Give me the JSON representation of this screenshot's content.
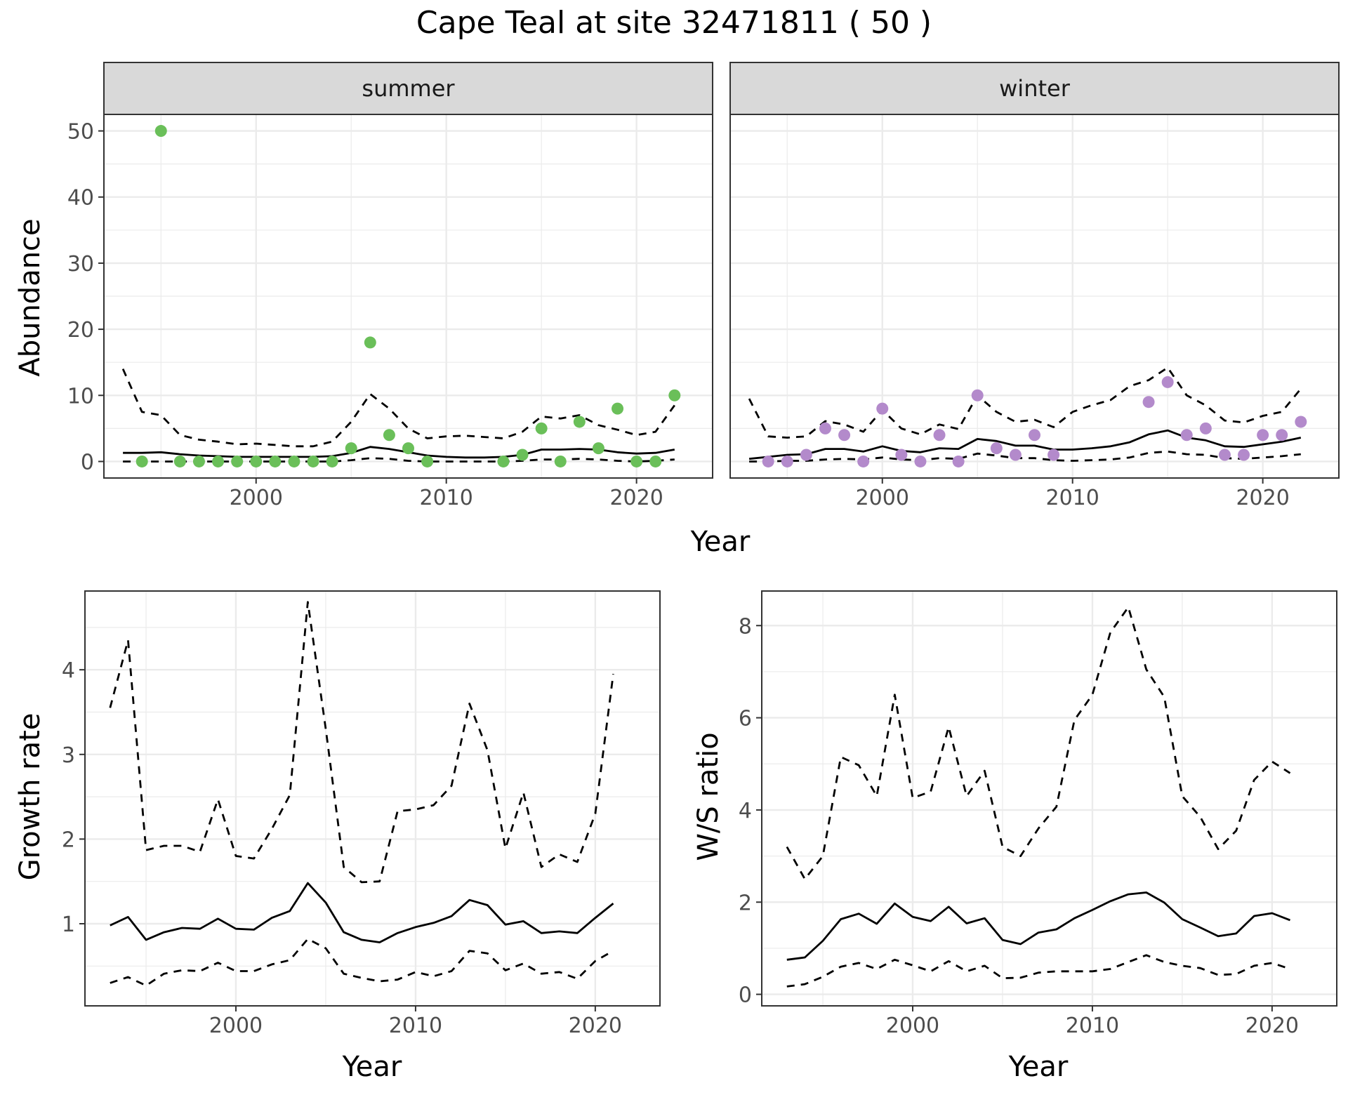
{
  "title": "Cape Teal at site 32471811 ( 50 )",
  "colors": {
    "summer_points": "#6ABF59",
    "winter_points": "#B38ACB",
    "strip_bg": "#D9D9D9"
  },
  "chart_data": [
    {
      "type": "scatter",
      "panel": "summer",
      "facet_label": "summer",
      "ylabel": "Abundance",
      "xlabel": "Year",
      "xlim": [
        1992,
        2024
      ],
      "ylim": [
        -2.5,
        52.5
      ],
      "xticks": [
        2000,
        2010,
        2020
      ],
      "yticks": [
        0,
        10,
        20,
        30,
        40,
        50
      ],
      "points": {
        "x": [
          1994,
          1995,
          1996,
          1997,
          1998,
          1999,
          2000,
          2001,
          2002,
          2003,
          2004,
          2005,
          2006,
          2007,
          2008,
          2009,
          2013,
          2014,
          2015,
          2016,
          2017,
          2018,
          2019,
          2020,
          2021,
          2022
        ],
        "y": [
          0,
          50,
          0,
          0,
          0,
          0,
          0,
          0,
          0,
          0,
          0,
          2,
          18,
          4,
          2,
          0,
          0,
          1,
          5,
          0,
          6,
          2,
          8,
          0,
          0,
          10
        ]
      },
      "series": [
        {
          "name": "",
          "style": "solid",
          "x": [
            1993,
            1994,
            1995,
            1996,
            1997,
            1998,
            1999,
            2000,
            2001,
            2002,
            2003,
            2004,
            2005,
            2006,
            2007,
            2008,
            2009,
            2010,
            2011,
            2012,
            2013,
            2014,
            2015,
            2016,
            2017,
            2018,
            2019,
            2020,
            2021,
            2022
          ],
          "y": [
            1.3,
            1.3,
            1.4,
            1.1,
            0.9,
            0.8,
            0.7,
            0.7,
            0.7,
            0.7,
            0.7,
            0.8,
            1.3,
            2.2,
            1.9,
            1.4,
            0.9,
            0.7,
            0.6,
            0.6,
            0.7,
            1.0,
            1.8,
            1.8,
            1.9,
            1.8,
            1.4,
            1.2,
            1.3,
            1.8
          ]
        },
        {
          "name": "",
          "style": "dashed",
          "x": [
            1993,
            1994,
            1995,
            1996,
            1997,
            1998,
            1999,
            2000,
            2001,
            2002,
            2003,
            2004,
            2005,
            2006,
            2007,
            2008,
            2009,
            2010,
            2011,
            2012,
            2013,
            2014,
            2015,
            2016,
            2017,
            2018,
            2019,
            2020,
            2021,
            2022
          ],
          "y": [
            14,
            7.5,
            7,
            4,
            3.3,
            3,
            2.6,
            2.7,
            2.5,
            2.3,
            2.3,
            3,
            6,
            10.2,
            8,
            5,
            3.5,
            3.8,
            3.9,
            3.7,
            3.5,
            4.5,
            6.8,
            6.5,
            7,
            5.5,
            4.8,
            4,
            4.5,
            8.5
          ]
        },
        {
          "name": "",
          "style": "dashed",
          "x": [
            1993,
            1994,
            1995,
            1996,
            1997,
            1998,
            1999,
            2000,
            2001,
            2002,
            2003,
            2004,
            2005,
            2006,
            2007,
            2008,
            2009,
            2010,
            2011,
            2012,
            2013,
            2014,
            2015,
            2016,
            2017,
            2018,
            2019,
            2020,
            2021,
            2022
          ],
          "y": [
            0,
            0,
            0,
            0,
            0,
            0,
            0,
            0,
            0,
            0,
            0,
            0,
            0.2,
            0.5,
            0.4,
            0.1,
            0,
            0,
            0,
            0,
            0,
            0.1,
            0.3,
            0.3,
            0.4,
            0.3,
            0.1,
            0,
            0.1,
            0.3
          ]
        }
      ]
    },
    {
      "type": "scatter",
      "panel": "winter",
      "facet_label": "winter",
      "xlabel": "Year",
      "xlim": [
        1992,
        2024
      ],
      "ylim": [
        -2.5,
        52.5
      ],
      "xticks": [
        2000,
        2010,
        2020
      ],
      "points": {
        "x": [
          1994,
          1995,
          1996,
          1997,
          1998,
          1999,
          2000,
          2001,
          2002,
          2003,
          2004,
          2005,
          2006,
          2007,
          2008,
          2009,
          2014,
          2015,
          2016,
          2017,
          2018,
          2019,
          2020,
          2021,
          2022
        ],
        "y": [
          0,
          0,
          1,
          5,
          4,
          0,
          8,
          1,
          0,
          4,
          0,
          10,
          2,
          1,
          4,
          1,
          9,
          12,
          4,
          5,
          1,
          1,
          4,
          4,
          6
        ]
      },
      "series": [
        {
          "name": "",
          "style": "solid",
          "x": [
            1993,
            1994,
            1995,
            1996,
            1997,
            1998,
            1999,
            2000,
            2001,
            2002,
            2003,
            2004,
            2005,
            2006,
            2007,
            2008,
            2009,
            2010,
            2011,
            2012,
            2013,
            2014,
            2015,
            2016,
            2017,
            2018,
            2019,
            2020,
            2021,
            2022
          ],
          "y": [
            0.4,
            0.7,
            1.0,
            1.1,
            1.9,
            1.9,
            1.5,
            2.3,
            1.6,
            1.4,
            2.0,
            1.9,
            3.4,
            3.1,
            2.4,
            2.4,
            1.8,
            1.8,
            2.0,
            2.3,
            2.9,
            4.1,
            4.7,
            3.6,
            3.2,
            2.3,
            2.2,
            2.6,
            3.0,
            3.6
          ]
        },
        {
          "name": "",
          "style": "dashed",
          "x": [
            1993,
            1994,
            1995,
            1996,
            1997,
            1998,
            1999,
            2000,
            2001,
            2002,
            2003,
            2004,
            2005,
            2006,
            2007,
            2008,
            2009,
            2010,
            2011,
            2012,
            2013,
            2014,
            2015,
            2016,
            2017,
            2018,
            2019,
            2020,
            2021,
            2022
          ],
          "y": [
            9.5,
            3.8,
            3.6,
            3.8,
            6.1,
            5.6,
            4.5,
            7.8,
            5,
            4.1,
            5.6,
            4.9,
            10,
            7.5,
            6,
            6.3,
            5.2,
            7.5,
            8.5,
            9.3,
            11.4,
            12.3,
            14.2,
            10,
            8.5,
            6.2,
            5.9,
            6.9,
            7.5,
            11
          ]
        },
        {
          "name": "",
          "style": "dashed",
          "x": [
            1993,
            1994,
            1995,
            1996,
            1997,
            1998,
            1999,
            2000,
            2001,
            2002,
            2003,
            2004,
            2005,
            2006,
            2007,
            2008,
            2009,
            2010,
            2011,
            2012,
            2013,
            2014,
            2015,
            2016,
            2017,
            2018,
            2019,
            2020,
            2021,
            2022
          ],
          "y": [
            0,
            0,
            0.1,
            0.1,
            0.3,
            0.4,
            0.3,
            0.6,
            0.3,
            0.2,
            0.5,
            0.4,
            1.2,
            0.9,
            0.5,
            0.5,
            0.2,
            0.1,
            0.2,
            0.3,
            0.6,
            1.3,
            1.5,
            1.1,
            1.0,
            0.5,
            0.4,
            0.6,
            0.8,
            1.1
          ]
        }
      ]
    },
    {
      "type": "line",
      "panel": "growth",
      "ylabel": "Growth rate",
      "xlabel": "Year",
      "xlim": [
        1991.6,
        2023.6
      ],
      "ylim": [
        0.03,
        4.93
      ],
      "xticks": [
        2000,
        2010,
        2020
      ],
      "yticks": [
        1,
        2,
        3,
        4
      ],
      "series": [
        {
          "name": "",
          "style": "solid",
          "x": [
            1993,
            1994,
            1995,
            1996,
            1997,
            1998,
            1999,
            2000,
            2001,
            2002,
            2003,
            2004,
            2005,
            2006,
            2007,
            2008,
            2009,
            2010,
            2011,
            2012,
            2013,
            2014,
            2015,
            2016,
            2017,
            2018,
            2019,
            2020,
            2021
          ],
          "y": [
            0.98,
            1.08,
            0.81,
            0.9,
            0.95,
            0.94,
            1.06,
            0.94,
            0.93,
            1.07,
            1.15,
            1.48,
            1.25,
            0.9,
            0.81,
            0.78,
            0.89,
            0.96,
            1.01,
            1.09,
            1.28,
            1.22,
            0.99,
            1.03,
            0.89,
            0.91,
            0.89,
            1.07,
            1.24
          ]
        },
        {
          "name": "",
          "style": "dashed",
          "x": [
            1993,
            1994,
            1995,
            1996,
            1997,
            1998,
            1999,
            2000,
            2001,
            2002,
            2003,
            2004,
            2005,
            2006,
            2007,
            2008,
            2009,
            2010,
            2011,
            2012,
            2013,
            2014,
            2015,
            2016,
            2017,
            2018,
            2019,
            2020,
            2021
          ],
          "y": [
            3.55,
            4.35,
            1.87,
            1.92,
            1.92,
            1.85,
            2.47,
            1.8,
            1.77,
            2.12,
            2.52,
            4.8,
            3.3,
            1.67,
            1.49,
            1.5,
            2.33,
            2.35,
            2.4,
            2.63,
            3.6,
            3.05,
            1.89,
            2.55,
            1.67,
            1.82,
            1.73,
            2.3,
            3.95
          ]
        },
        {
          "name": "",
          "style": "dashed",
          "x": [
            1993,
            1994,
            1995,
            1996,
            1997,
            1998,
            1999,
            2000,
            2001,
            2002,
            2003,
            2004,
            2005,
            2006,
            2007,
            2008,
            2009,
            2010,
            2011,
            2012,
            2013,
            2014,
            2015,
            2016,
            2017,
            2018,
            2019,
            2020,
            2021
          ],
          "y": [
            0.3,
            0.37,
            0.27,
            0.41,
            0.45,
            0.44,
            0.54,
            0.44,
            0.44,
            0.52,
            0.57,
            0.82,
            0.71,
            0.41,
            0.36,
            0.32,
            0.34,
            0.43,
            0.38,
            0.44,
            0.68,
            0.65,
            0.45,
            0.53,
            0.41,
            0.43,
            0.35,
            0.56,
            0.68
          ]
        }
      ]
    },
    {
      "type": "line",
      "panel": "ratio",
      "ylabel": "W/S ratio",
      "xlabel": "Year",
      "xlim": [
        1991.6,
        2023.6
      ],
      "ylim": [
        -0.25,
        8.75
      ],
      "xticks": [
        2000,
        2010,
        2020
      ],
      "yticks": [
        0,
        2,
        4,
        6,
        8
      ],
      "series": [
        {
          "name": "",
          "style": "solid",
          "x": [
            1993,
            1994,
            1995,
            1996,
            1997,
            1998,
            1999,
            2000,
            2001,
            2002,
            2003,
            2004,
            2005,
            2006,
            2007,
            2008,
            2009,
            2010,
            2011,
            2012,
            2013,
            2014,
            2015,
            2016,
            2017,
            2018,
            2019,
            2020,
            2021
          ],
          "y": [
            0.75,
            0.8,
            1.16,
            1.63,
            1.75,
            1.53,
            1.97,
            1.68,
            1.59,
            1.9,
            1.54,
            1.65,
            1.18,
            1.09,
            1.34,
            1.41,
            1.65,
            1.83,
            2.02,
            2.17,
            2.21,
            1.99,
            1.63,
            1.45,
            1.26,
            1.32,
            1.7,
            1.76,
            1.61
          ]
        },
        {
          "name": "",
          "style": "dashed",
          "x": [
            1993,
            1994,
            1995,
            1996,
            1997,
            1998,
            1999,
            2000,
            2001,
            2002,
            2003,
            2004,
            2005,
            2006,
            2007,
            2008,
            2009,
            2010,
            2011,
            2012,
            2013,
            2014,
            2015,
            2016,
            2017,
            2018,
            2019,
            2020,
            2021
          ],
          "y": [
            3.2,
            2.5,
            3.0,
            5.15,
            4.97,
            4.3,
            6.5,
            4.26,
            4.4,
            5.8,
            4.3,
            4.85,
            3.2,
            3.0,
            3.6,
            4.07,
            5.95,
            6.5,
            7.85,
            8.4,
            7.05,
            6.45,
            4.3,
            3.85,
            3.15,
            3.55,
            4.65,
            5.05,
            4.8
          ]
        },
        {
          "name": "",
          "style": "dashed",
          "x": [
            1993,
            1994,
            1995,
            1996,
            1997,
            1998,
            1999,
            2000,
            2001,
            2002,
            2003,
            2004,
            2005,
            2006,
            2007,
            2008,
            2009,
            2010,
            2011,
            2012,
            2013,
            2014,
            2015,
            2016,
            2017,
            2018,
            2019,
            2020,
            2021
          ],
          "y": [
            0.17,
            0.22,
            0.38,
            0.6,
            0.68,
            0.55,
            0.75,
            0.63,
            0.5,
            0.72,
            0.5,
            0.62,
            0.35,
            0.36,
            0.47,
            0.5,
            0.5,
            0.5,
            0.55,
            0.7,
            0.85,
            0.7,
            0.62,
            0.57,
            0.42,
            0.44,
            0.62,
            0.68,
            0.55
          ]
        }
      ]
    }
  ]
}
